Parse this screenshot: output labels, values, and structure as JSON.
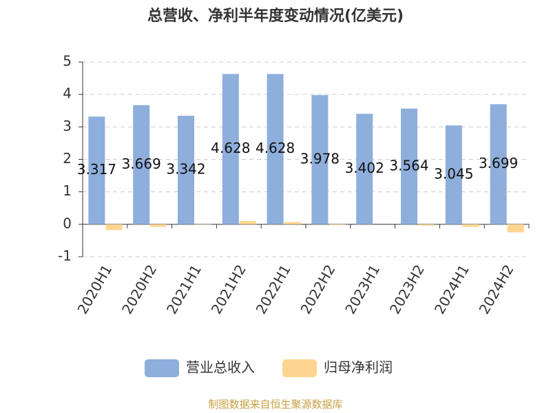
{
  "chart_data": {
    "type": "bar",
    "title": "总营收、净利半年度变动情况(亿美元)",
    "categories": [
      "2020H1",
      "2020H2",
      "2021H1",
      "2021H2",
      "2022H1",
      "2022H2",
      "2023H1",
      "2023H2",
      "2024H1",
      "2024H2"
    ],
    "series": [
      {
        "name": "营业总收入",
        "color": "#8eaedb",
        "values": [
          3.317,
          3.669,
          3.342,
          4.628,
          4.628,
          3.978,
          3.402,
          3.564,
          3.045,
          3.699
        ],
        "show_labels": true
      },
      {
        "name": "归母净利润",
        "color": "#fdd590",
        "values": [
          -0.18,
          -0.08,
          -0.01,
          0.1,
          0.07,
          -0.02,
          0.0,
          -0.04,
          -0.08,
          -0.25
        ],
        "show_labels": false
      }
    ],
    "ylim": [
      -1,
      5
    ],
    "yticks": [
      -1,
      0,
      1,
      2,
      3,
      4,
      5
    ],
    "grid": true,
    "legend": "bottom",
    "source": "制图数据来自恒生聚源数据库"
  }
}
